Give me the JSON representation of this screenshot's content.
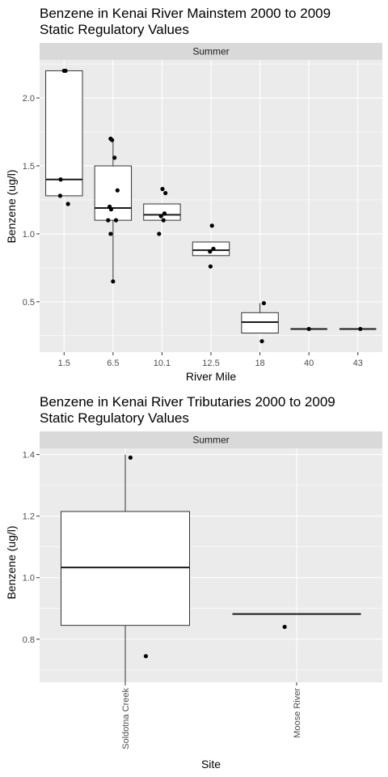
{
  "chart_data": [
    {
      "type": "box",
      "title_line1": "Benzene in Kenai River Mainstem  2000 to 2009",
      "title_line2": "Static Regulatory Values",
      "facet": "Summer",
      "xlabel": "River Mile",
      "ylabel": "Benzene (ug/l)",
      "ylim": [
        0.13,
        2.28
      ],
      "yticks": [
        0.5,
        1.0,
        1.5,
        2.0
      ],
      "ytick_labels": [
        "0.5",
        "1.0",
        "1.5",
        "2.0"
      ],
      "grid": true,
      "categories": [
        "1.5",
        "6.5",
        "10.1",
        "12.5",
        "18",
        "40",
        "43"
      ],
      "boxes": [
        {
          "q1": 1.28,
          "median": 1.4,
          "q3": 2.2,
          "whisker_low": 1.28,
          "whisker_high": 2.2
        },
        {
          "q1": 1.1,
          "median": 1.19,
          "q3": 1.5,
          "whisker_low": 0.65,
          "whisker_high": 1.7
        },
        {
          "q1": 1.1,
          "median": 1.14,
          "q3": 1.22,
          "whisker_low": 1.1,
          "whisker_high": 1.22
        },
        {
          "q1": 0.84,
          "median": 0.88,
          "q3": 0.94,
          "whisker_low": 0.84,
          "whisker_high": 0.94
        },
        {
          "q1": 0.27,
          "median": 0.35,
          "q3": 0.42,
          "whisker_low": 0.27,
          "whisker_high": 0.49
        },
        {
          "q1": 0.3,
          "median": 0.3,
          "q3": 0.3,
          "whisker_low": 0.3,
          "whisker_high": 0.3
        },
        {
          "q1": 0.3,
          "median": 0.3,
          "q3": 0.3,
          "whisker_low": 0.3,
          "whisker_high": 0.3
        }
      ],
      "points": [
        {
          "cat": 0,
          "jitter": 0.0,
          "y": 2.2
        },
        {
          "cat": 0,
          "jitter": 0.03,
          "y": 2.2
        },
        {
          "cat": 0,
          "jitter": -0.07,
          "y": 1.4
        },
        {
          "cat": 0,
          "jitter": -0.08,
          "y": 1.28
        },
        {
          "cat": 0,
          "jitter": 0.08,
          "y": 1.22
        },
        {
          "cat": 1,
          "jitter": -0.05,
          "y": 1.7
        },
        {
          "cat": 1,
          "jitter": -0.02,
          "y": 1.69
        },
        {
          "cat": 1,
          "jitter": 0.03,
          "y": 1.56
        },
        {
          "cat": 1,
          "jitter": 0.09,
          "y": 1.32
        },
        {
          "cat": 1,
          "jitter": -0.07,
          "y": 1.2
        },
        {
          "cat": 1,
          "jitter": -0.04,
          "y": 1.18
        },
        {
          "cat": 1,
          "jitter": -0.1,
          "y": 1.1
        },
        {
          "cat": 1,
          "jitter": 0.06,
          "y": 1.1
        },
        {
          "cat": 1,
          "jitter": -0.05,
          "y": 1.0
        },
        {
          "cat": 1,
          "jitter": 0.0,
          "y": 0.65
        },
        {
          "cat": 2,
          "jitter": 0.01,
          "y": 1.33
        },
        {
          "cat": 2,
          "jitter": 0.07,
          "y": 1.3
        },
        {
          "cat": 2,
          "jitter": 0.05,
          "y": 1.15
        },
        {
          "cat": 2,
          "jitter": -0.02,
          "y": 1.13
        },
        {
          "cat": 2,
          "jitter": 0.03,
          "y": 1.1
        },
        {
          "cat": 2,
          "jitter": -0.06,
          "y": 1.0
        },
        {
          "cat": 3,
          "jitter": 0.02,
          "y": 1.06
        },
        {
          "cat": 3,
          "jitter": 0.05,
          "y": 0.89
        },
        {
          "cat": 3,
          "jitter": -0.02,
          "y": 0.87
        },
        {
          "cat": 3,
          "jitter": -0.01,
          "y": 0.76
        },
        {
          "cat": 4,
          "jitter": 0.08,
          "y": 0.49
        },
        {
          "cat": 4,
          "jitter": 0.04,
          "y": 0.21
        },
        {
          "cat": 5,
          "jitter": 0.0,
          "y": 0.3
        },
        {
          "cat": 6,
          "jitter": 0.05,
          "y": 0.3
        }
      ]
    },
    {
      "type": "box",
      "title_line1": "Benzene in Kenai River Tributaries  2000 to 2009",
      "title_line2": "Static Regulatory Values",
      "facet": "Summer",
      "xlabel": "Site",
      "ylabel": "Benzene (ug/l)",
      "ylim": [
        0.66,
        1.42
      ],
      "yticks": [
        0.8,
        1.0,
        1.2,
        1.4
      ],
      "ytick_labels": [
        "0.8",
        "1.0",
        "1.2",
        "1.4"
      ],
      "grid": true,
      "categories": [
        "Soldotna Creek",
        "Moose River"
      ],
      "boxes": [
        {
          "q1": 0.845,
          "median": 1.033,
          "q3": 1.215,
          "whisker_low": 0.66,
          "whisker_high": 1.4
        },
        {
          "q1": 0.882,
          "median": 0.882,
          "q3": 0.882,
          "whisker_low": 0.882,
          "whisker_high": 0.882
        }
      ],
      "points": [
        {
          "cat": 0,
          "jitter": 0.03,
          "y": 1.39
        },
        {
          "cat": 0,
          "jitter": 0.12,
          "y": 0.745
        },
        {
          "cat": 1,
          "jitter": -0.07,
          "y": 0.84
        }
      ]
    }
  ]
}
